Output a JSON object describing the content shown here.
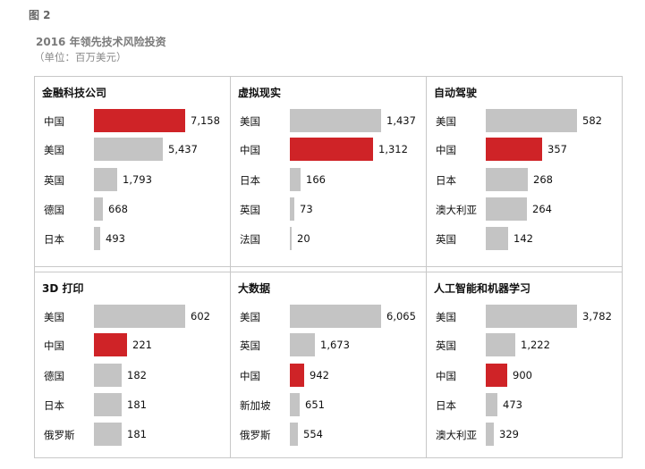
{
  "figure_label": "图 2",
  "title": "2016 年领先技术风险投资",
  "unit": "（单位：百万美元）",
  "colors": {
    "highlight": "#cf2327",
    "default": "#c4c4c4"
  },
  "chart_data": [
    {
      "type": "bar",
      "orientation": "horizontal",
      "title": "金融科技公司",
      "categories": [
        "中国",
        "美国",
        "英国",
        "德国",
        "日本"
      ],
      "values": [
        7158,
        5437,
        1793,
        668,
        493
      ],
      "labels": [
        "7,158",
        "5,437",
        "1,793",
        "668",
        "493"
      ],
      "highlight": "中国"
    },
    {
      "type": "bar",
      "orientation": "horizontal",
      "title": "虚拟现实",
      "categories": [
        "美国",
        "中国",
        "日本",
        "英国",
        "法国"
      ],
      "values": [
        1437,
        1312,
        166,
        73,
        20
      ],
      "labels": [
        "1,437",
        "1,312",
        "166",
        "73",
        "20"
      ],
      "highlight": "中国"
    },
    {
      "type": "bar",
      "orientation": "horizontal",
      "title": "自动驾驶",
      "categories": [
        "美国",
        "中国",
        "日本",
        "澳大利亚",
        "英国"
      ],
      "values": [
        582,
        357,
        268,
        264,
        142
      ],
      "labels": [
        "582",
        "357",
        "268",
        "264",
        "142"
      ],
      "highlight": "中国"
    },
    {
      "type": "bar",
      "orientation": "horizontal",
      "title": "3D 打印",
      "categories": [
        "美国",
        "中国",
        "德国",
        "日本",
        "俄罗斯"
      ],
      "values": [
        602,
        221,
        182,
        181,
        181
      ],
      "labels": [
        "602",
        "221",
        "182",
        "181",
        "181"
      ],
      "highlight": "中国"
    },
    {
      "type": "bar",
      "orientation": "horizontal",
      "title": "大数据",
      "categories": [
        "美国",
        "英国",
        "中国",
        "新加坡",
        "俄罗斯"
      ],
      "values": [
        6065,
        1673,
        942,
        651,
        554
      ],
      "labels": [
        "6,065",
        "1,673",
        "942",
        "651",
        "554"
      ],
      "highlight": "中国"
    },
    {
      "type": "bar",
      "orientation": "horizontal",
      "title": "人工智能和机器学习",
      "categories": [
        "美国",
        "英国",
        "中国",
        "日本",
        "澳大利亚"
      ],
      "values": [
        3782,
        1222,
        900,
        473,
        329
      ],
      "labels": [
        "3,782",
        "1,222",
        "900",
        "473",
        "329"
      ],
      "highlight": "中国"
    }
  ]
}
